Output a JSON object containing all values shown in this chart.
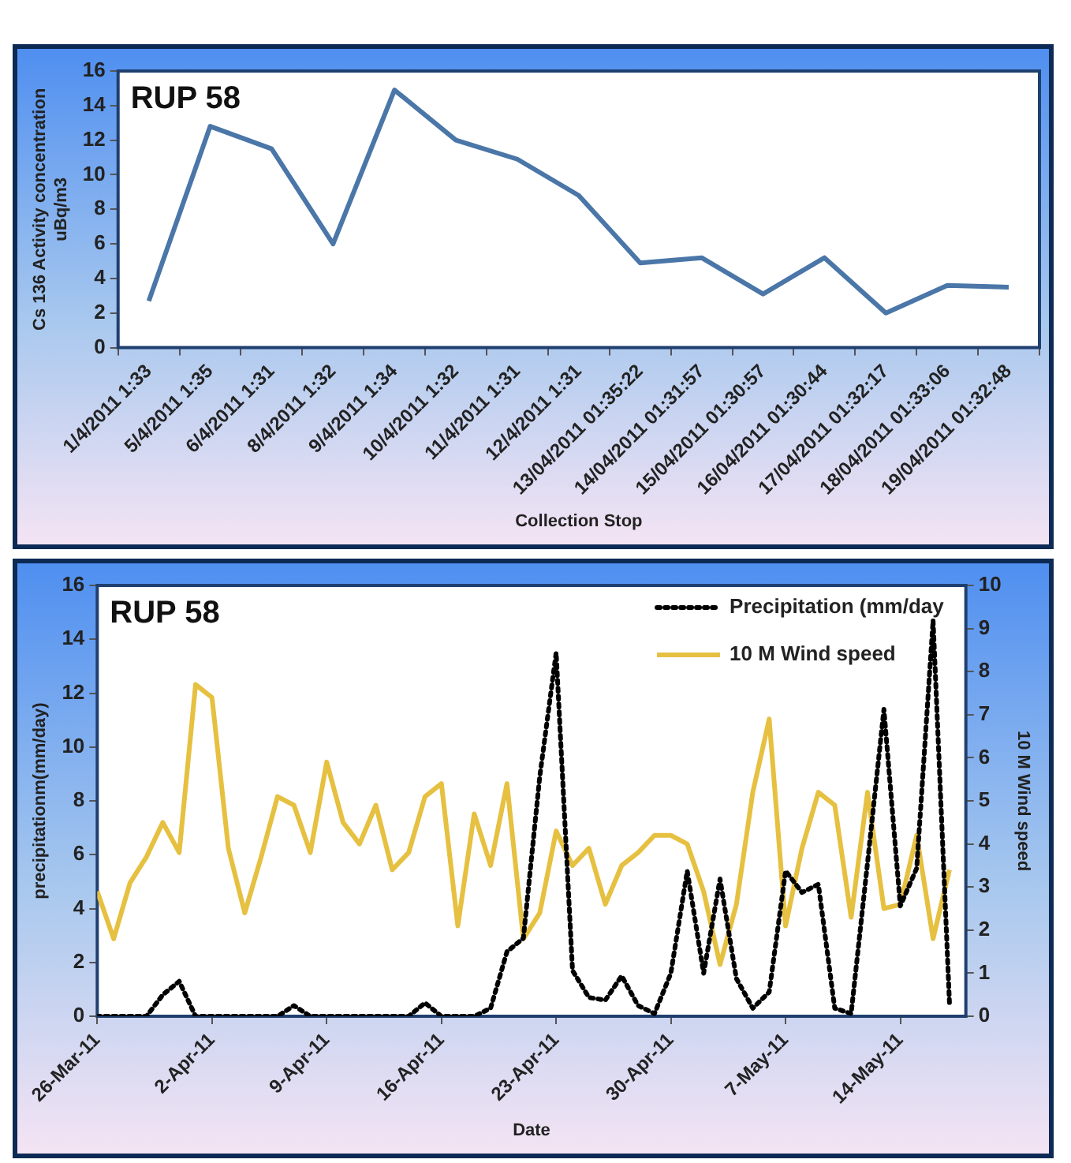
{
  "chart_data": [
    {
      "type": "line",
      "title": "RUP 58",
      "xlabel": "Collection Stop",
      "ylabel": "Cs 136 Activity concentration\nuBq/m3",
      "categories": [
        "1/4/2011 1:33",
        "5/4/2011 1:35",
        "6/4/2011 1:31",
        "8/4/2011 1:32",
        "9/4/2011 1:34",
        "10/4/2011 1:32",
        "11/4/2011 1:31",
        "12/4/2011 1:31",
        "13/04/2011 01:35:22",
        "14/04/2011 01:31:57",
        "15/04/2011 01:30:57",
        "16/04/2011 01:30:44",
        "17/04/2011 01:32:17",
        "18/04/2011 01:33:06",
        "19/04/2011 01:32:48"
      ],
      "series": [
        {
          "color": "#4a76a8",
          "values": [
            2.7,
            12.8,
            11.5,
            6.0,
            14.9,
            12.0,
            10.9,
            8.8,
            4.9,
            5.2,
            3.1,
            5.2,
            2.0,
            3.6,
            3.5
          ]
        }
      ],
      "ylim": [
        0,
        16
      ],
      "yticks": [
        0,
        2,
        4,
        6,
        8,
        10,
        12,
        14,
        16
      ],
      "marker": "none"
    },
    {
      "type": "line",
      "title": "RUP 58",
      "xlabel": "Date",
      "ylabel": "precipitationm(mm/day)",
      "y2label": "10 M Wind speed",
      "x": [
        "2011-03-26",
        "2011-03-27",
        "2011-03-28",
        "2011-03-29",
        "2011-03-30",
        "2011-03-31",
        "2011-04-01",
        "2011-04-02",
        "2011-04-03",
        "2011-04-04",
        "2011-04-05",
        "2011-04-06",
        "2011-04-07",
        "2011-04-08",
        "2011-04-09",
        "2011-04-10",
        "2011-04-11",
        "2011-04-12",
        "2011-04-13",
        "2011-04-14",
        "2011-04-15",
        "2011-04-16",
        "2011-04-17",
        "2011-04-18",
        "2011-04-19",
        "2011-04-20",
        "2011-04-21",
        "2011-04-22",
        "2011-04-23",
        "2011-04-24",
        "2011-04-25",
        "2011-04-26",
        "2011-04-27",
        "2011-04-28",
        "2011-04-29",
        "2011-04-30",
        "2011-05-01",
        "2011-05-02",
        "2011-05-03",
        "2011-05-04",
        "2011-05-05",
        "2011-05-06",
        "2011-05-07",
        "2011-05-08",
        "2011-05-09",
        "2011-05-10",
        "2011-05-11",
        "2011-05-12",
        "2011-05-13",
        "2011-05-14",
        "2011-05-15",
        "2011-05-16",
        "2011-05-17"
      ],
      "series": [
        {
          "name": "Precipitation (mm/day",
          "color": "#000000",
          "line_style": "dotted",
          "values": [
            0,
            0,
            0,
            0,
            0.8,
            1.3,
            0,
            0,
            0,
            0,
            0,
            0,
            0.4,
            0,
            0,
            0,
            0,
            0,
            0,
            0,
            0.5,
            0,
            0,
            0,
            0.3,
            2.4,
            2.9,
            8.9,
            13.5,
            1.7,
            0.7,
            0.6,
            1.5,
            0.4,
            0.1,
            1.6,
            5.4,
            1.6,
            5.1,
            1.4,
            0.3,
            0.9,
            5.4,
            4.6,
            4.9,
            0.3,
            0.1,
            5.7,
            11.4,
            4.1,
            5.5,
            14.7,
            0.5
          ]
        },
        {
          "name": "10 M Wind speed",
          "color": "#e6c040",
          "line_style": "solid",
          "axis": "y2",
          "values": [
            2.9,
            1.8,
            3.1,
            3.7,
            4.5,
            3.8,
            7.7,
            7.4,
            3.9,
            2.4,
            3.7,
            5.1,
            4.9,
            3.8,
            5.9,
            4.5,
            4.0,
            4.9,
            3.4,
            3.8,
            5.1,
            5.4,
            2.1,
            4.7,
            3.5,
            5.4,
            1.8,
            2.4,
            4.3,
            3.5,
            3.9,
            2.6,
            3.5,
            3.8,
            4.2,
            4.2,
            4.0,
            2.9,
            1.2,
            2.6,
            5.2,
            6.9,
            2.1,
            3.9,
            5.2,
            4.9,
            2.3,
            5.2,
            2.5,
            2.6,
            4.2,
            1.8,
            3.4
          ]
        }
      ],
      "xlim": [
        "2011-03-26",
        "2011-05-18"
      ],
      "xticks": [
        {
          "value": "2011-03-26",
          "label": "26-Mar-11"
        },
        {
          "value": "2011-04-02",
          "label": "2-Apr-11"
        },
        {
          "value": "2011-04-09",
          "label": "9-Apr-11"
        },
        {
          "value": "2011-04-16",
          "label": "16-Apr-11"
        },
        {
          "value": "2011-04-23",
          "label": "23-Apr-11"
        },
        {
          "value": "2011-04-30",
          "label": "30-Apr-11"
        },
        {
          "value": "2011-05-07",
          "label": "7-May-11"
        },
        {
          "value": "2011-05-14",
          "label": "14-May-11"
        }
      ],
      "ylim": [
        0,
        16
      ],
      "yticks": [
        0,
        2,
        4,
        6,
        8,
        10,
        12,
        14,
        16
      ],
      "y2lim": [
        0,
        10
      ],
      "y2ticks": [
        0,
        1,
        2,
        3,
        4,
        5,
        6,
        7,
        8,
        9,
        10
      ],
      "legend": "top right",
      "marker": "none"
    }
  ]
}
